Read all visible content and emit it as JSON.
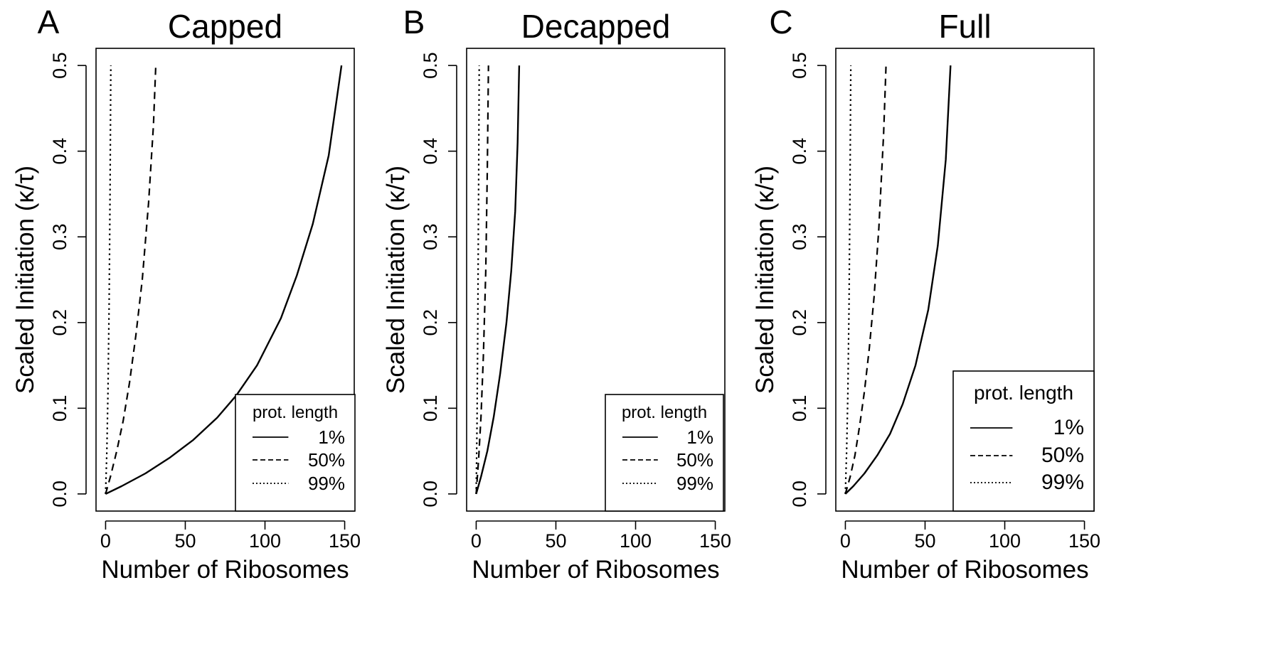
{
  "figure": {
    "xlabel": "Number of Ribosomes",
    "ylabel": "Scaled Initiation (κ/τ)",
    "x_ticks": [
      0,
      50,
      100,
      150
    ],
    "y_ticks": [
      "0.0",
      "0.1",
      "0.2",
      "0.3",
      "0.4",
      "0.5"
    ],
    "legend_title": "prot. length",
    "legend_entries": [
      {
        "label": "1%",
        "linestyle": "solid"
      },
      {
        "label": "50%",
        "linestyle": "dashed"
      },
      {
        "label": "99%",
        "linestyle": "dotted"
      }
    ]
  },
  "chart_data": [
    {
      "type": "line",
      "panel": "A",
      "title": "Capped",
      "xlabel": "Number of Ribosomes",
      "ylabel": "Scaled Initiation (κ/τ)",
      "xlim": [
        -6,
        156
      ],
      "ylim": [
        -0.02,
        0.52
      ],
      "legend": "bottom-right",
      "series": [
        {
          "name": "1%",
          "linestyle": "solid",
          "x": [
            0,
            10,
            25,
            40,
            55,
            70,
            82,
            95,
            110,
            120,
            130,
            140,
            148
          ],
          "y": [
            0,
            0.009,
            0.024,
            0.042,
            0.063,
            0.089,
            0.115,
            0.15,
            0.205,
            0.255,
            0.315,
            0.395,
            0.5
          ]
        },
        {
          "name": "50%",
          "linestyle": "dashed",
          "x": [
            0,
            3,
            7,
            11,
            15,
            19,
            23,
            27,
            30,
            31.5
          ],
          "y": [
            0,
            0.02,
            0.05,
            0.085,
            0.13,
            0.185,
            0.25,
            0.34,
            0.43,
            0.5
          ]
        },
        {
          "name": "99%",
          "linestyle": "dotted",
          "x": [
            0,
            0.8,
            1.5,
            2.2,
            2.8,
            3.3
          ],
          "y": [
            0,
            0.05,
            0.12,
            0.22,
            0.35,
            0.5
          ]
        }
      ]
    },
    {
      "type": "line",
      "panel": "B",
      "title": "Decapped",
      "xlabel": "Number of Ribosomes",
      "ylabel": "Scaled Initiation (κ/τ)",
      "xlim": [
        -6,
        156
      ],
      "ylim": [
        -0.02,
        0.52
      ],
      "legend": "bottom-right",
      "series": [
        {
          "name": "1%",
          "linestyle": "solid",
          "x": [
            0,
            3,
            7,
            11,
            15,
            19,
            22,
            24.5,
            26,
            27
          ],
          "y": [
            0,
            0.02,
            0.05,
            0.09,
            0.14,
            0.2,
            0.26,
            0.33,
            0.41,
            0.5
          ]
        },
        {
          "name": "50%",
          "linestyle": "dashed",
          "x": [
            0,
            1.5,
            3,
            4.5,
            6,
            7,
            7.7
          ],
          "y": [
            0,
            0.04,
            0.09,
            0.16,
            0.26,
            0.38,
            0.5
          ]
        },
        {
          "name": "99%",
          "linestyle": "dotted",
          "x": [
            0,
            0.5,
            1,
            1.5,
            1.9
          ],
          "y": [
            0,
            0.08,
            0.2,
            0.35,
            0.5
          ]
        }
      ]
    },
    {
      "type": "line",
      "panel": "C",
      "title": "Full",
      "xlabel": "Number of Ribosomes",
      "ylabel": "Scaled Initiation (κ/τ)",
      "xlim": [
        -6,
        156
      ],
      "ylim": [
        -0.02,
        0.52
      ],
      "legend": "bottom-right",
      "series": [
        {
          "name": "1%",
          "linestyle": "solid",
          "x": [
            0,
            5,
            12,
            20,
            28,
            36,
            44,
            52,
            58,
            63,
            66
          ],
          "y": [
            0,
            0.009,
            0.024,
            0.045,
            0.07,
            0.105,
            0.15,
            0.215,
            0.29,
            0.39,
            0.5
          ]
        },
        {
          "name": "50%",
          "linestyle": "dashed",
          "x": [
            0,
            3,
            6,
            9,
            12,
            15,
            18,
            21,
            24,
            25.5
          ],
          "y": [
            0,
            0.02,
            0.045,
            0.08,
            0.12,
            0.17,
            0.23,
            0.31,
            0.42,
            0.5
          ]
        },
        {
          "name": "99%",
          "linestyle": "dotted",
          "x": [
            0,
            0.8,
            1.6,
            2.3,
            2.9,
            3.4
          ],
          "y": [
            0,
            0.05,
            0.12,
            0.22,
            0.35,
            0.5
          ]
        }
      ]
    }
  ]
}
